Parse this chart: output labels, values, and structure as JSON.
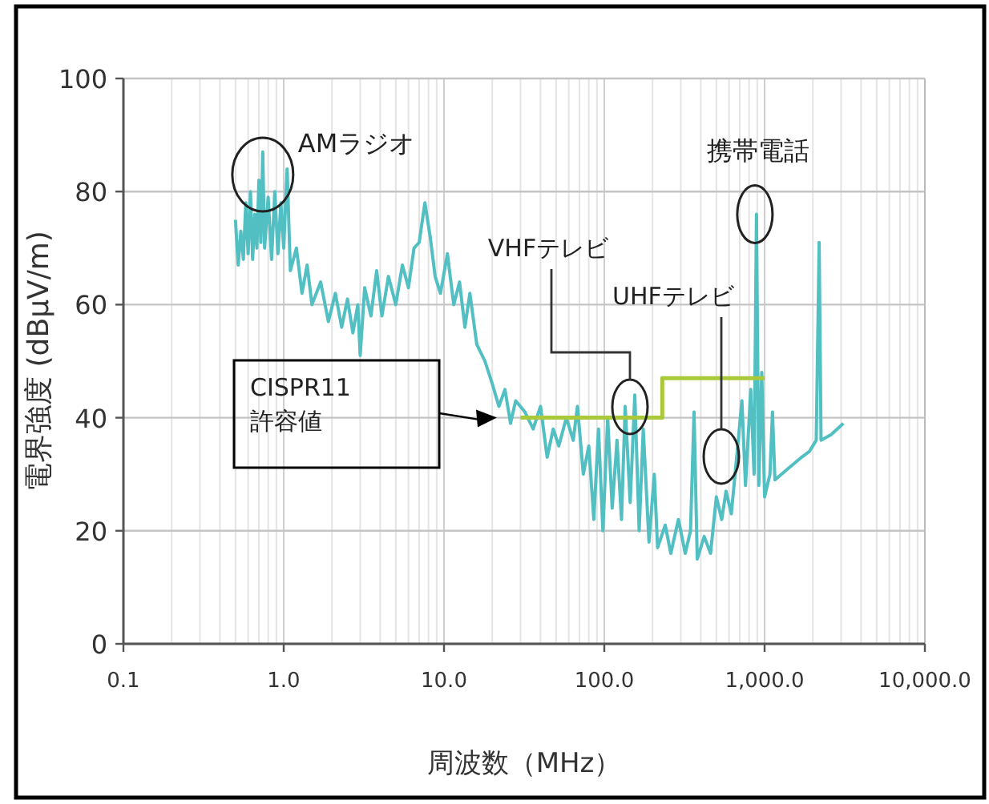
{
  "chart_data": {
    "type": "line",
    "xlabel": "周波数（MHz）",
    "ylabel": "電界強度 (dBμV/m)",
    "log": "x",
    "grid": true,
    "xlim": [
      0.1,
      10000
    ],
    "ylim": [
      0,
      100
    ],
    "xticks": [
      {
        "value": 0.1,
        "label": "0.1"
      },
      {
        "value": 1,
        "label": "1.0"
      },
      {
        "value": 10,
        "label": "10.0"
      },
      {
        "value": 100,
        "label": "100.0"
      },
      {
        "value": 1000,
        "label": "1,000.0"
      },
      {
        "value": 10000,
        "label": "10,000.0"
      }
    ],
    "yticks": [
      0,
      20,
      40,
      60,
      80,
      100
    ],
    "series": [
      {
        "color": "#52bfc3",
        "x": [
          0.5,
          0.52,
          0.54,
          0.56,
          0.58,
          0.6,
          0.62,
          0.64,
          0.66,
          0.68,
          0.7,
          0.72,
          0.74,
          0.76,
          0.8,
          0.84,
          0.88,
          0.92,
          0.96,
          1.0,
          1.05,
          1.1,
          1.2,
          1.3,
          1.4,
          1.5,
          1.7,
          1.9,
          2.1,
          2.3,
          2.5,
          2.7,
          2.9,
          3.0,
          3.2,
          3.5,
          3.8,
          4.1,
          4.5,
          5.0,
          5.5,
          6.0,
          6.5,
          7.0,
          7.6,
          8.2,
          8.8,
          9.5,
          10.5,
          11.5,
          12.5,
          13.5,
          14.5,
          16,
          18,
          20,
          22,
          24,
          26,
          28,
          32,
          36,
          40,
          44,
          48,
          52,
          58,
          64,
          68,
          74,
          80,
          86,
          92,
          98,
          105,
          112,
          120,
          128,
          135,
          145,
          155,
          165,
          175,
          190,
          205,
          215,
          240,
          260,
          290,
          320,
          345,
          363,
          380,
          420,
          460,
          500,
          540,
          575,
          620,
          680,
          722,
          760,
          820,
          860,
          890,
          920,
          960,
          1000,
          1080,
          1120,
          1160,
          1400,
          1700,
          1900,
          2100,
          2190,
          2250,
          2600,
          3100
        ],
        "values": [
          75,
          67,
          73,
          68,
          78,
          69,
          80,
          68,
          76,
          70,
          82,
          71,
          87,
          70,
          79,
          68,
          80,
          69,
          78,
          70,
          84,
          66,
          70,
          62,
          67,
          60,
          64,
          57,
          62,
          56,
          61,
          55,
          60,
          51,
          63,
          58,
          66,
          58,
          65,
          60,
          67,
          63,
          70,
          71,
          78,
          72,
          65,
          62,
          69,
          60,
          64,
          56,
          62,
          53,
          50,
          46,
          42,
          45,
          39,
          43,
          41,
          38,
          42,
          33,
          38,
          35,
          40,
          36,
          42,
          30,
          35,
          22,
          38,
          20,
          40,
          24,
          36,
          22,
          42,
          25,
          44,
          20,
          38,
          18,
          30,
          17,
          21,
          16,
          22,
          16,
          20,
          41,
          15,
          19,
          16,
          26,
          22,
          27,
          23,
          35,
          43,
          28,
          45,
          30,
          76,
          28,
          48,
          26,
          30,
          41,
          29,
          31,
          33,
          34,
          36,
          71,
          36,
          37,
          39
        ]
      },
      {
        "name": "CISPR11 許容値",
        "color": "#a9c93a",
        "type": "step",
        "x": [
          30,
          230,
          230,
          1000
        ],
        "values": [
          40,
          40,
          47,
          47
        ]
      }
    ],
    "annotations": [
      {
        "text": "AMラジオ",
        "x": 0.74,
        "y": 83
      },
      {
        "text": "携帯電話",
        "x": 870,
        "y": 76
      },
      "VHFテレビ",
      "UHFテレビ"
    ]
  }
}
